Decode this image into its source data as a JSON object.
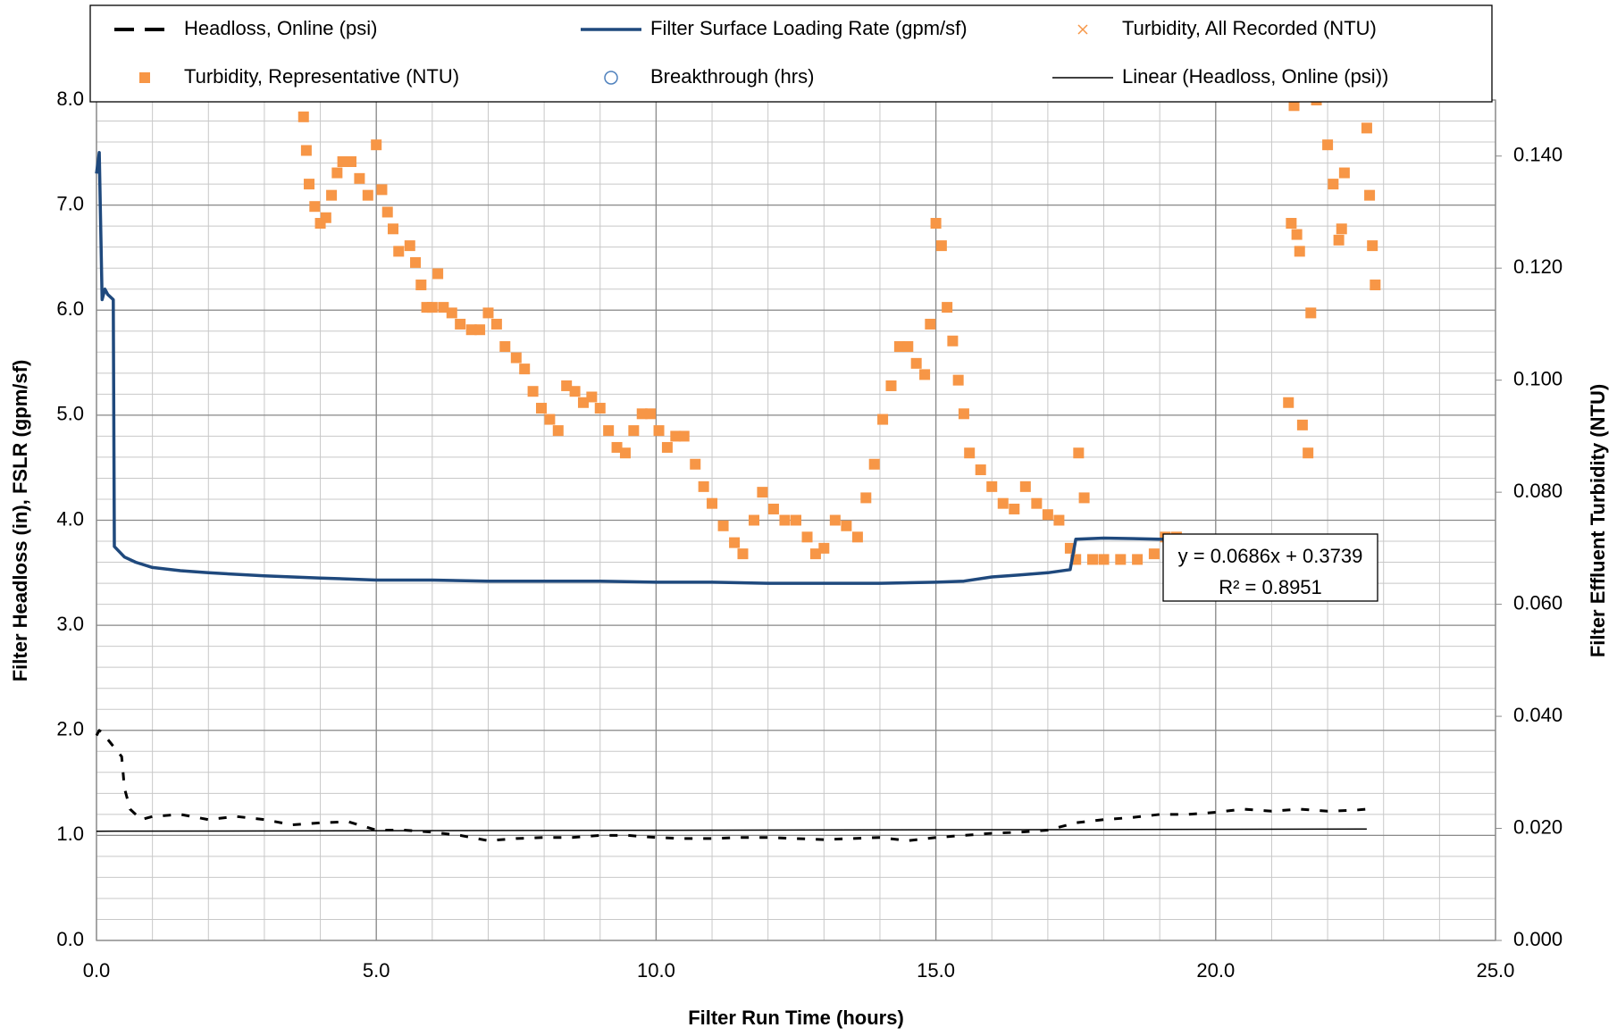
{
  "chart_data": {
    "type": "line",
    "xlabel": "Filter Run Time (hours)",
    "ylabel": "Filter Headloss (in), FSLR (gpm/sf)",
    "y2label": "Filter Effluent Turbidity (NTU)",
    "xlim": [
      0,
      25
    ],
    "xticks": [
      {
        "value": 0,
        "label": "0.0"
      },
      {
        "value": 5,
        "label": "5.0"
      },
      {
        "value": 10,
        "label": "10.0"
      },
      {
        "value": 15,
        "label": "15.0"
      },
      {
        "value": 20,
        "label": "20.0"
      },
      {
        "value": 25,
        "label": "25.0"
      }
    ],
    "ylim": [
      0,
      8
    ],
    "yticks": [
      {
        "value": 0,
        "label": "0.0"
      },
      {
        "value": 1,
        "label": "1.0"
      },
      {
        "value": 2,
        "label": "2.0"
      },
      {
        "value": 3,
        "label": "3.0"
      },
      {
        "value": 4,
        "label": "4.0"
      },
      {
        "value": 5,
        "label": "5.0"
      },
      {
        "value": 6,
        "label": "6.0"
      },
      {
        "value": 7,
        "label": "7.0"
      },
      {
        "value": 8,
        "label": "8.0"
      }
    ],
    "y2lim": [
      0,
      0.15
    ],
    "y2ticks": [
      {
        "value": 0,
        "label": "0.000"
      },
      {
        "value": 0.02,
        "label": "0.020"
      },
      {
        "value": 0.04,
        "label": "0.040"
      },
      {
        "value": 0.06,
        "label": "0.060"
      },
      {
        "value": 0.08,
        "label": "0.080"
      },
      {
        "value": 0.1,
        "label": "0.100"
      },
      {
        "value": 0.12,
        "label": "0.120"
      },
      {
        "value": 0.14,
        "label": "0.140"
      }
    ],
    "grid": true,
    "minor_grid": true,
    "legend": "top",
    "annotations": [
      "y = 0.0686x + 0.3739",
      "R² = 0.8951"
    ],
    "series": [
      {
        "name": "Headloss, Online (psi)",
        "color": "#000000",
        "mark": "dashed-line",
        "x": [
          0,
          0.05,
          0.1,
          0.45,
          0.5,
          0.6,
          0.8,
          1,
          1.5,
          2,
          2.5,
          3,
          3.5,
          4,
          4.5,
          5,
          5.5,
          6,
          6.5,
          7,
          7.5,
          8,
          8.5,
          9,
          9.5,
          10,
          10.5,
          11,
          11.5,
          12,
          12.5,
          13,
          13.5,
          14,
          14.5,
          15,
          15.5,
          16,
          16.5,
          17,
          17.5,
          18,
          18.5,
          19,
          19.5,
          20,
          20.5,
          21,
          21.5,
          22,
          22.5,
          22.7
        ],
        "values": [
          1.95,
          2.0,
          1.98,
          1.75,
          1.45,
          1.25,
          1.15,
          1.18,
          1.2,
          1.15,
          1.18,
          1.15,
          1.1,
          1.12,
          1.13,
          1.05,
          1.05,
          1.03,
          1.0,
          0.95,
          0.97,
          0.98,
          0.98,
          1.0,
          1.0,
          0.98,
          0.97,
          0.97,
          0.98,
          0.98,
          0.97,
          0.96,
          0.97,
          0.98,
          0.95,
          0.98,
          1.0,
          1.02,
          1.03,
          1.05,
          1.12,
          1.15,
          1.17,
          1.2,
          1.2,
          1.22,
          1.25,
          1.23,
          1.25,
          1.23,
          1.24,
          1.25
        ]
      },
      {
        "name": "Filter Surface Loading Rate (gpm/sf)",
        "color": "#1f497d",
        "mark": "line",
        "x": [
          0,
          0.05,
          0.1,
          0.15,
          0.2,
          0.3,
          0.32,
          0.5,
          0.7,
          1,
          1.5,
          2,
          3,
          4,
          5,
          6,
          7,
          8,
          9,
          10,
          11,
          12,
          13,
          14,
          15,
          15.5,
          16,
          16.5,
          17,
          17.4,
          17.5,
          18,
          19,
          20,
          20.5,
          21,
          21.6
        ],
        "values": [
          7.3,
          7.5,
          6.1,
          6.2,
          6.15,
          6.1,
          3.75,
          3.65,
          3.6,
          3.55,
          3.52,
          3.5,
          3.47,
          3.45,
          3.43,
          3.43,
          3.42,
          3.42,
          3.42,
          3.41,
          3.41,
          3.4,
          3.4,
          3.4,
          3.41,
          3.42,
          3.46,
          3.48,
          3.5,
          3.53,
          3.82,
          3.83,
          3.82,
          3.82,
          3.81,
          3.8,
          3.8
        ]
      },
      {
        "name": "Turbidity, All Recorded (NTU)",
        "color": "#f79646",
        "mark": "x",
        "axis": "y2",
        "x": [],
        "values": []
      },
      {
        "name": "Turbidity, Representative (NTU)",
        "color": "#f79646",
        "mark": "square",
        "axis": "y2",
        "x": [
          3.7,
          3.75,
          3.8,
          3.9,
          4.0,
          4.1,
          4.2,
          4.3,
          4.4,
          4.55,
          4.7,
          4.85,
          5.0,
          5.1,
          5.2,
          5.3,
          5.4,
          5.6,
          5.7,
          5.8,
          5.9,
          6.0,
          6.1,
          6.2,
          6.35,
          6.5,
          6.7,
          6.85,
          7.0,
          7.15,
          7.3,
          7.5,
          7.65,
          7.8,
          7.95,
          8.1,
          8.25,
          8.4,
          8.55,
          8.7,
          8.85,
          9.0,
          9.15,
          9.3,
          9.45,
          9.6,
          9.75,
          9.9,
          10.05,
          10.2,
          10.35,
          10.5,
          10.7,
          10.85,
          11.0,
          11.2,
          11.4,
          11.55,
          11.75,
          11.9,
          12.1,
          12.3,
          12.5,
          12.7,
          12.85,
          13.0,
          13.2,
          13.4,
          13.6,
          13.75,
          13.9,
          14.05,
          14.2,
          14.35,
          14.5,
          14.65,
          14.8,
          14.9,
          15.0,
          15.1,
          15.2,
          15.3,
          15.4,
          15.5,
          15.6,
          15.8,
          16.0,
          16.2,
          16.4,
          16.6,
          16.8,
          17.0,
          17.2,
          17.4,
          17.5,
          17.55,
          17.65,
          17.8,
          18.0,
          18.3,
          18.6,
          18.9,
          19.1,
          19.3,
          21.3,
          21.35,
          21.4,
          21.45,
          21.5,
          21.55,
          21.65,
          21.7,
          21.8,
          22.0,
          22.1,
          22.2,
          22.25,
          22.3,
          22.7,
          22.75,
          22.8,
          22.85
        ],
        "values": [
          0.147,
          0.141,
          0.135,
          0.131,
          0.128,
          0.129,
          0.133,
          0.137,
          0.139,
          0.139,
          0.136,
          0.133,
          0.142,
          0.134,
          0.13,
          0.127,
          0.123,
          0.124,
          0.121,
          0.117,
          0.113,
          0.113,
          0.119,
          0.113,
          0.112,
          0.11,
          0.109,
          0.109,
          0.112,
          0.11,
          0.106,
          0.104,
          0.102,
          0.098,
          0.095,
          0.093,
          0.091,
          0.099,
          0.098,
          0.096,
          0.097,
          0.095,
          0.091,
          0.088,
          0.087,
          0.091,
          0.094,
          0.094,
          0.091,
          0.088,
          0.09,
          0.09,
          0.085,
          0.081,
          0.078,
          0.074,
          0.071,
          0.069,
          0.075,
          0.08,
          0.077,
          0.075,
          0.075,
          0.072,
          0.069,
          0.07,
          0.075,
          0.074,
          0.072,
          0.079,
          0.085,
          0.093,
          0.099,
          0.106,
          0.106,
          0.103,
          0.101,
          0.11,
          0.128,
          0.124,
          0.113,
          0.107,
          0.1,
          0.094,
          0.087,
          0.084,
          0.081,
          0.078,
          0.077,
          0.081,
          0.078,
          0.076,
          0.075,
          0.07,
          0.068,
          0.087,
          0.079,
          0.068,
          0.068,
          0.068,
          0.068,
          0.069,
          0.072,
          0.072,
          0.096,
          0.128,
          0.149,
          0.126,
          0.123,
          0.092,
          0.087,
          0.112,
          0.15,
          0.142,
          0.135,
          0.125,
          0.127,
          0.137,
          0.145,
          0.133,
          0.124,
          0.117
        ]
      },
      {
        "name": "Breakthrough (hrs)",
        "color": "#4f81bd",
        "mark": "circle",
        "x": [],
        "values": []
      },
      {
        "name": "Linear (Headloss, Online (psi))",
        "color": "#000000",
        "mark": "thin-line",
        "x": [
          0,
          22.7
        ],
        "values": [
          1.04,
          1.06
        ]
      }
    ]
  }
}
